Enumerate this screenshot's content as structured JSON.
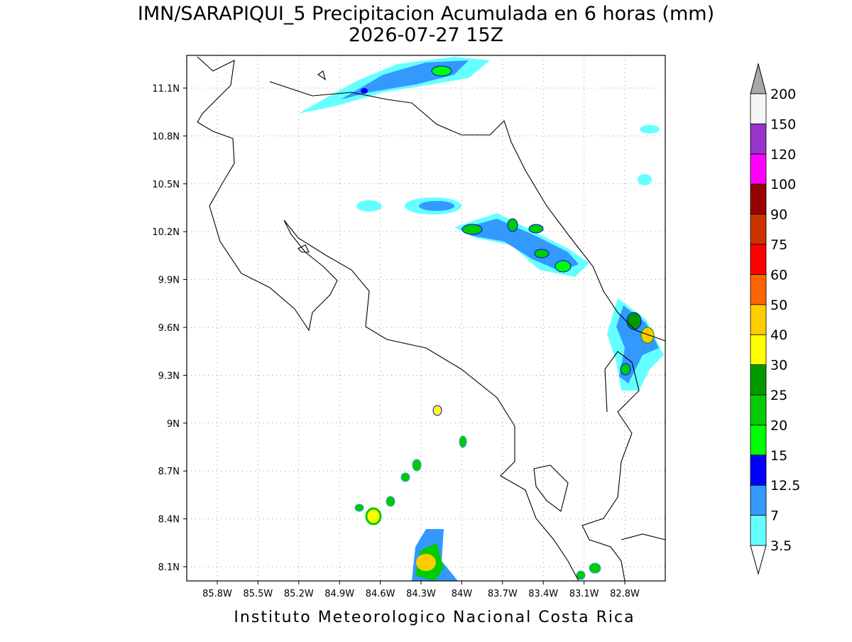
{
  "title": "IMN/SARAPIQUI_5 Precipitacion Acumulada en 6 horas (mm)",
  "subtitle": "2026-07-27 15Z",
  "map": {
    "lon_ticks": [
      "85.8W",
      "85.5W",
      "85.2W",
      "84.9W",
      "84.6W",
      "84.3W",
      "84W",
      "83.7W",
      "83.4W",
      "83.1W",
      "82.8W"
    ],
    "lat_ticks": [
      "11.1N",
      "10.8N",
      "10.5N",
      "10.2N",
      "9.9N",
      "9.6N",
      "9.3N",
      "9N",
      "8.7N",
      "8.4N",
      "8.1N"
    ]
  },
  "colorbar": {
    "levels": [
      "3.5",
      "7",
      "12.5",
      "15",
      "20",
      "25",
      "30",
      "40",
      "50",
      "60",
      "75",
      "90",
      "100",
      "120",
      "150",
      "200"
    ],
    "colors": [
      "#66ffff",
      "#3399ff",
      "#0000ff",
      "#00ff00",
      "#00cc00",
      "#009900",
      "#ffff00",
      "#ffcc00",
      "#ff6600",
      "#ff0000",
      "#cc3300",
      "#990000",
      "#ff00ff",
      "#9933cc",
      "#f5f5f5"
    ],
    "under_color": "#ffffff",
    "over_color": "#a8a8a8"
  },
  "footer": "Instituto Meteorologico Nacional Costa Rica"
}
